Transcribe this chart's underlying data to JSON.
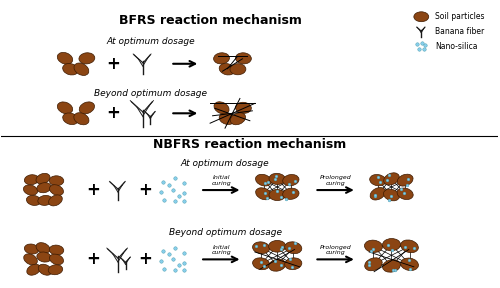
{
  "title_bfrs": "BFRS reaction mechanism",
  "title_nbfrs": "NBFRS reaction mechanism",
  "soil_color": "#8B4513",
  "fiber_color": "#1a1a1a",
  "nanosilica_color": "#87CEEB",
  "nanosilica_edge": "#4499aa",
  "bg_color": "#ffffff",
  "legend_items": [
    "Soil particles",
    "Banana fiber",
    "Nano-silica"
  ],
  "bfrs_label1": "At optimum dosage",
  "bfrs_label2": "Beyond optimum dosage",
  "nbfrs_label1": "At optimum dosage",
  "nbfrs_label2": "Beyond optimum dosage",
  "arrow_label1": "Initial\ncuring",
  "arrow_label2": "Prolonged\ncuring"
}
